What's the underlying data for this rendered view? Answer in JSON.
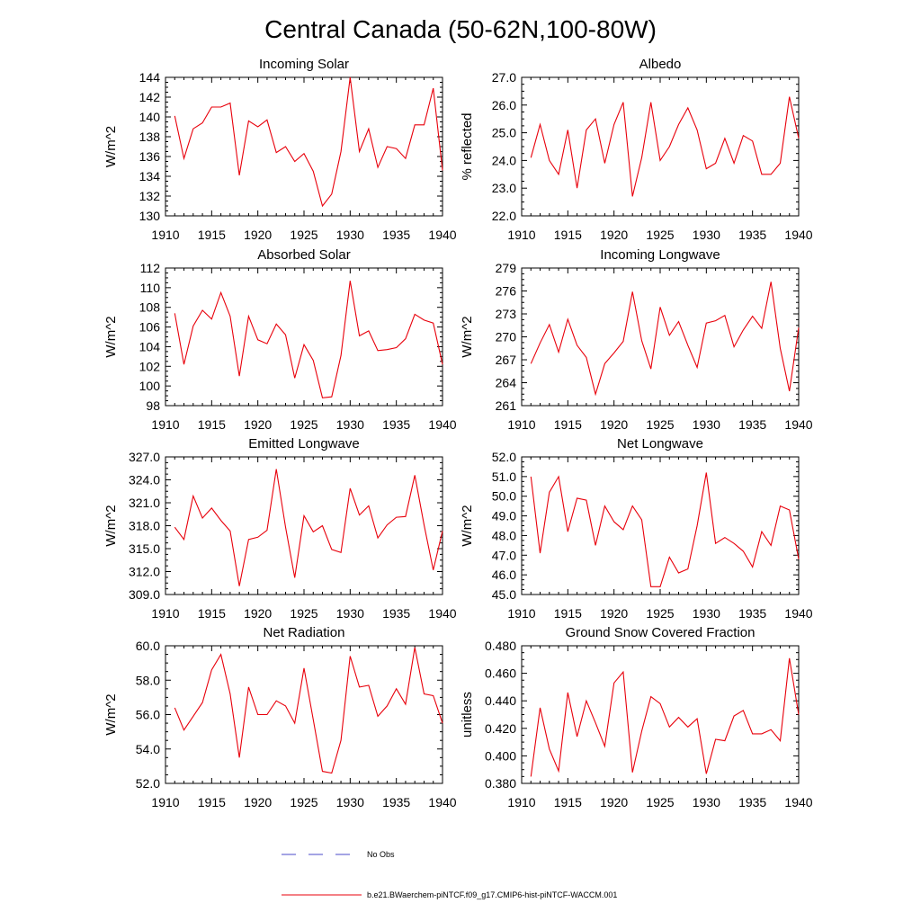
{
  "figure": {
    "title": "Central Canada (50-62N,100-80W)"
  },
  "legend": {
    "placement": "bottom",
    "entries": [
      {
        "label": "No Obs",
        "color": "#4a4ac8",
        "style": "dashed"
      },
      {
        "label": "b.e21.BWaerchem-piNTCF.f09_g17.CMIP6-hist-piNTCF-WACCM.001",
        "color": "#e8000b",
        "style": "solid"
      }
    ]
  },
  "chart_data": [
    {
      "type": "line",
      "title": "Incoming Solar",
      "ylabel": "W/m^2",
      "xlabel": "",
      "xlim": [
        1910,
        1940
      ],
      "ylim": [
        130,
        144
      ],
      "xticks": [
        1910,
        1915,
        1920,
        1925,
        1930,
        1935,
        1940
      ],
      "yticks": [
        "130",
        "132",
        "134",
        "136",
        "138",
        "140",
        "142",
        "144"
      ],
      "x": [
        1911,
        1912,
        1913,
        1914,
        1915,
        1916,
        1917,
        1918,
        1919,
        1920,
        1921,
        1922,
        1923,
        1924,
        1925,
        1926,
        1927,
        1928,
        1929,
        1930,
        1931,
        1932,
        1933,
        1934,
        1935,
        1936,
        1937,
        1938,
        1939,
        1940
      ],
      "series": [
        {
          "name": "b.e21.BWaerchem-piNTCF.f09_g17.CMIP6-hist-piNTCF-WACCM.001",
          "color": "#e8000b",
          "values": [
            140.1,
            135.8,
            138.8,
            139.4,
            141.0,
            141.0,
            141.4,
            134.1,
            139.6,
            139.0,
            139.7,
            136.4,
            137.0,
            135.5,
            136.3,
            134.5,
            131.0,
            132.2,
            136.5,
            144.0,
            136.5,
            138.8,
            134.9,
            137.0,
            136.8,
            135.8,
            139.2,
            139.2,
            142.9,
            134.6
          ]
        }
      ]
    },
    {
      "type": "line",
      "title": "Albedo",
      "ylabel": "% reflected",
      "xlabel": "",
      "xlim": [
        1910,
        1940
      ],
      "ylim": [
        22.0,
        27.0
      ],
      "xticks": [
        1910,
        1915,
        1920,
        1925,
        1930,
        1935,
        1940
      ],
      "yticks": [
        "22.0",
        "23.0",
        "24.0",
        "25.0",
        "26.0",
        "27.0"
      ],
      "x": [
        1911,
        1912,
        1913,
        1914,
        1915,
        1916,
        1917,
        1918,
        1919,
        1920,
        1921,
        1922,
        1923,
        1924,
        1925,
        1926,
        1927,
        1928,
        1929,
        1930,
        1931,
        1932,
        1933,
        1934,
        1935,
        1936,
        1937,
        1938,
        1939,
        1940
      ],
      "series": [
        {
          "name": "b.e21.BWaerchem-piNTCF.f09_g17.CMIP6-hist-piNTCF-WACCM.001",
          "color": "#e8000b",
          "values": [
            24.1,
            25.3,
            24.0,
            23.5,
            25.1,
            23.0,
            25.1,
            25.5,
            23.9,
            25.3,
            26.1,
            22.7,
            24.1,
            26.1,
            24.0,
            24.5,
            25.3,
            25.9,
            25.1,
            23.7,
            23.9,
            24.8,
            23.9,
            24.9,
            24.7,
            23.5,
            23.5,
            23.9,
            26.3,
            24.8
          ]
        }
      ]
    },
    {
      "type": "line",
      "title": "Absorbed Solar",
      "ylabel": "W/m^2",
      "xlabel": "",
      "xlim": [
        1910,
        1940
      ],
      "ylim": [
        98,
        112
      ],
      "xticks": [
        1910,
        1915,
        1920,
        1925,
        1930,
        1935,
        1940
      ],
      "yticks": [
        "98",
        "100",
        "102",
        "104",
        "106",
        "108",
        "110",
        "112"
      ],
      "x": [
        1911,
        1912,
        1913,
        1914,
        1915,
        1916,
        1917,
        1918,
        1919,
        1920,
        1921,
        1922,
        1923,
        1924,
        1925,
        1926,
        1927,
        1928,
        1929,
        1930,
        1931,
        1932,
        1933,
        1934,
        1935,
        1936,
        1937,
        1938,
        1939,
        1940
      ],
      "series": [
        {
          "name": "b.e21.BWaerchem-piNTCF.f09_g17.CMIP6-hist-piNTCF-WACCM.001",
          "color": "#e8000b",
          "values": [
            107.4,
            102.2,
            106.1,
            107.7,
            106.8,
            109.5,
            107.1,
            101.0,
            107.1,
            104.7,
            104.3,
            106.3,
            105.2,
            100.8,
            104.2,
            102.6,
            98.8,
            98.9,
            103.1,
            110.7,
            105.1,
            105.6,
            103.6,
            103.7,
            103.9,
            104.8,
            107.3,
            106.7,
            106.4,
            102.2
          ]
        }
      ]
    },
    {
      "type": "line",
      "title": "Incoming Longwave",
      "ylabel": "W/m^2",
      "xlabel": "",
      "xlim": [
        1910,
        1940
      ],
      "ylim": [
        261,
        279
      ],
      "xticks": [
        1910,
        1915,
        1920,
        1925,
        1930,
        1935,
        1940
      ],
      "yticks": [
        "261",
        "264",
        "267",
        "270",
        "273",
        "276",
        "279"
      ],
      "x": [
        1911,
        1912,
        1913,
        1914,
        1915,
        1916,
        1917,
        1918,
        1919,
        1920,
        1921,
        1922,
        1923,
        1924,
        1925,
        1926,
        1927,
        1928,
        1929,
        1930,
        1931,
        1932,
        1933,
        1934,
        1935,
        1936,
        1937,
        1938,
        1939,
        1940
      ],
      "series": [
        {
          "name": "b.e21.BWaerchem-piNTCF.f09_g17.CMIP6-hist-piNTCF-WACCM.001",
          "color": "#e8000b",
          "values": [
            266.5,
            269.2,
            271.6,
            268.0,
            272.3,
            268.9,
            267.3,
            262.5,
            266.5,
            267.9,
            269.4,
            275.9,
            269.5,
            265.8,
            273.9,
            270.2,
            272.0,
            268.9,
            266.0,
            271.8,
            272.1,
            272.8,
            268.7,
            270.9,
            272.7,
            271.1,
            277.2,
            268.5,
            262.9,
            271.2
          ]
        }
      ]
    },
    {
      "type": "line",
      "title": "Emitted Longwave",
      "ylabel": "W/m^2",
      "xlabel": "",
      "xlim": [
        1910,
        1940
      ],
      "ylim": [
        309.0,
        327.0
      ],
      "xticks": [
        1910,
        1915,
        1920,
        1925,
        1930,
        1935,
        1940
      ],
      "yticks": [
        "309.0",
        "312.0",
        "315.0",
        "318.0",
        "321.0",
        "324.0",
        "327.0"
      ],
      "x": [
        1911,
        1912,
        1913,
        1914,
        1915,
        1916,
        1917,
        1918,
        1919,
        1920,
        1921,
        1922,
        1923,
        1924,
        1925,
        1926,
        1927,
        1928,
        1929,
        1930,
        1931,
        1932,
        1933,
        1934,
        1935,
        1936,
        1937,
        1938,
        1939,
        1940
      ],
      "series": [
        {
          "name": "b.e21.BWaerchem-piNTCF.f09_g17.CMIP6-hist-piNTCF-WACCM.001",
          "color": "#e8000b",
          "values": [
            317.8,
            316.2,
            321.9,
            319.0,
            320.3,
            318.7,
            317.3,
            310.1,
            316.2,
            316.5,
            317.4,
            325.4,
            317.8,
            311.2,
            319.3,
            317.2,
            318.0,
            314.9,
            314.5,
            322.9,
            319.4,
            320.6,
            316.4,
            318.1,
            319.1,
            319.2,
            324.6,
            318.1,
            312.2,
            317.3
          ]
        }
      ]
    },
    {
      "type": "line",
      "title": "Net Longwave",
      "ylabel": "W/m^2",
      "xlabel": "",
      "xlim": [
        1910,
        1940
      ],
      "ylim": [
        45.0,
        52.0
      ],
      "xticks": [
        1910,
        1915,
        1920,
        1925,
        1930,
        1935,
        1940
      ],
      "yticks": [
        "45.0",
        "46.0",
        "47.0",
        "48.0",
        "49.0",
        "50.0",
        "51.0",
        "52.0"
      ],
      "x": [
        1911,
        1912,
        1913,
        1914,
        1915,
        1916,
        1917,
        1918,
        1919,
        1920,
        1921,
        1922,
        1923,
        1924,
        1925,
        1926,
        1927,
        1928,
        1929,
        1930,
        1931,
        1932,
        1933,
        1934,
        1935,
        1936,
        1937,
        1938,
        1939,
        1940
      ],
      "series": [
        {
          "name": "b.e21.BWaerchem-piNTCF.f09_g17.CMIP6-hist-piNTCF-WACCM.001",
          "color": "#e8000b",
          "values": [
            51.0,
            47.1,
            50.2,
            51.0,
            48.2,
            49.9,
            49.8,
            47.5,
            49.5,
            48.7,
            48.3,
            49.5,
            48.8,
            45.4,
            45.4,
            46.9,
            46.1,
            46.3,
            48.5,
            51.2,
            47.6,
            47.9,
            47.6,
            47.2,
            46.4,
            48.2,
            47.5,
            49.5,
            49.3,
            46.8
          ]
        }
      ]
    },
    {
      "type": "line",
      "title": "Net Radiation",
      "ylabel": "W/m^2",
      "xlabel": "",
      "xlim": [
        1910,
        1940
      ],
      "ylim": [
        52.0,
        60.0
      ],
      "xticks": [
        1910,
        1915,
        1920,
        1925,
        1930,
        1935,
        1940
      ],
      "yticks": [
        "52.0",
        "54.0",
        "56.0",
        "58.0",
        "60.0"
      ],
      "x": [
        1911,
        1912,
        1913,
        1914,
        1915,
        1916,
        1917,
        1918,
        1919,
        1920,
        1921,
        1922,
        1923,
        1924,
        1925,
        1926,
        1927,
        1928,
        1929,
        1930,
        1931,
        1932,
        1933,
        1934,
        1935,
        1936,
        1937,
        1938,
        1939,
        1940
      ],
      "series": [
        {
          "name": "b.e21.BWaerchem-piNTCF.f09_g17.CMIP6-hist-piNTCF-WACCM.001",
          "color": "#e8000b",
          "values": [
            56.4,
            55.1,
            55.9,
            56.7,
            58.6,
            59.5,
            57.2,
            53.5,
            57.6,
            56.0,
            56.0,
            56.8,
            56.5,
            55.5,
            58.7,
            55.7,
            52.7,
            52.6,
            54.5,
            59.4,
            57.6,
            57.7,
            55.9,
            56.5,
            57.5,
            56.6,
            59.9,
            57.2,
            57.1,
            55.5
          ]
        }
      ]
    },
    {
      "type": "line",
      "title": "Ground Snow Covered Fraction",
      "ylabel": "unitless",
      "xlabel": "",
      "xlim": [
        1910,
        1940
      ],
      "ylim": [
        0.38,
        0.48
      ],
      "xticks": [
        1910,
        1915,
        1920,
        1925,
        1930,
        1935,
        1940
      ],
      "yticks": [
        "0.380",
        "0.400",
        "0.420",
        "0.440",
        "0.460",
        "0.480"
      ],
      "x": [
        1911,
        1912,
        1913,
        1914,
        1915,
        1916,
        1917,
        1918,
        1919,
        1920,
        1921,
        1922,
        1923,
        1924,
        1925,
        1926,
        1927,
        1928,
        1929,
        1930,
        1931,
        1932,
        1933,
        1934,
        1935,
        1936,
        1937,
        1938,
        1939,
        1940
      ],
      "series": [
        {
          "name": "b.e21.BWaerchem-piNTCF.f09_g17.CMIP6-hist-piNTCF-WACCM.001",
          "color": "#e8000b",
          "values": [
            0.385,
            0.435,
            0.405,
            0.389,
            0.446,
            0.414,
            0.44,
            0.424,
            0.407,
            0.453,
            0.461,
            0.388,
            0.418,
            0.443,
            0.438,
            0.421,
            0.428,
            0.421,
            0.427,
            0.387,
            0.412,
            0.411,
            0.429,
            0.433,
            0.416,
            0.416,
            0.419,
            0.411,
            0.471,
            0.43
          ]
        }
      ]
    }
  ]
}
